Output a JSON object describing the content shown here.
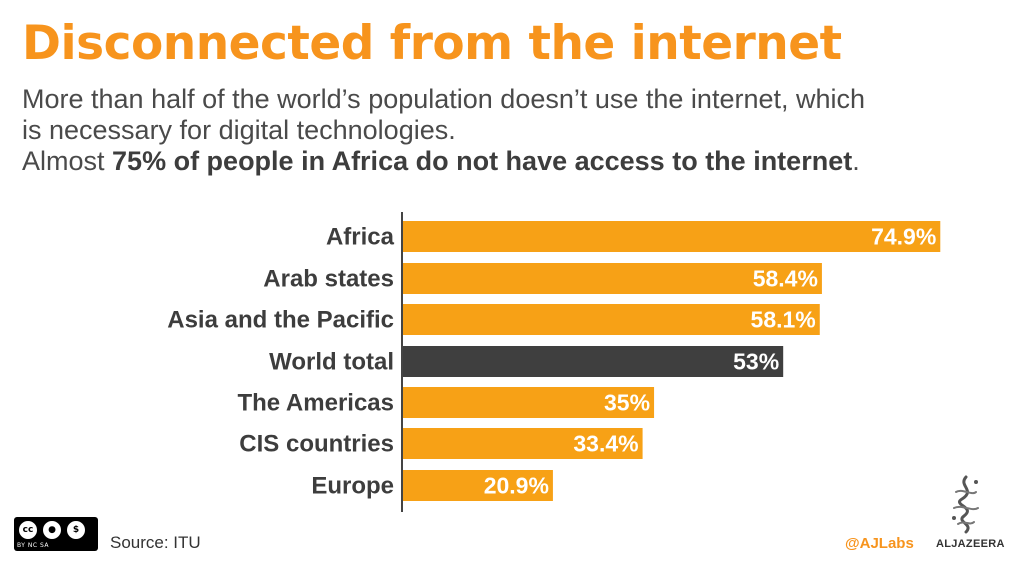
{
  "header": {
    "title": "Disconnected from the internet",
    "subtitle_line1": "More than half of the world’s population doesn’t use the internet, which",
    "subtitle_line2": "is necessary for digital technologies.",
    "subtitle_line3_prefix": "Almost ",
    "subtitle_line3_bold": "75% of people in Africa do not have access to the internet",
    "subtitle_line3_suffix": "."
  },
  "chart_data": {
    "type": "bar",
    "orientation": "horizontal",
    "categories": [
      "Africa",
      "Arab states",
      "Asia and the Pacific",
      "World total",
      "The Americas",
      "CIS countries",
      "Europe"
    ],
    "values": [
      74.9,
      58.4,
      58.1,
      53,
      35,
      33.4,
      20.9
    ],
    "value_labels": [
      "74.9%",
      "58.4%",
      "58.1%",
      "53%",
      "35%",
      "33.4%",
      "20.9%"
    ],
    "highlight_category": "World total",
    "unit": "%",
    "xlim": [
      0,
      75
    ],
    "grid": false,
    "legend": "none",
    "colors": {
      "default": "#f7a116",
      "highlight": "#3f3f3f",
      "axis": "#444444"
    }
  },
  "footer": {
    "license_badges": "BY NC SA",
    "source": "Source: ITU",
    "handle": "@AJLabs",
    "brand": "ALJAZEERA"
  }
}
